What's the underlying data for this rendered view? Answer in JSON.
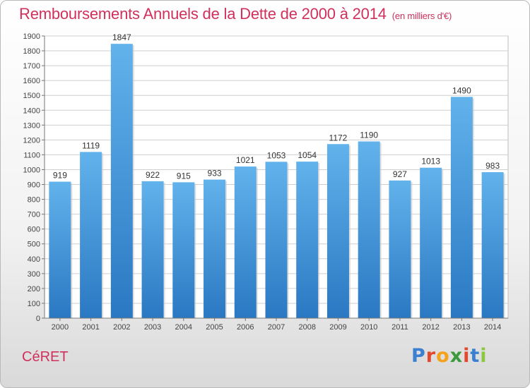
{
  "header": {
    "title": "Remboursements Annuels de la Dette de 2000 à 2014",
    "unit": "(en milliers d'€)"
  },
  "footer": {
    "city": "CéRET",
    "logo_letters": [
      "P",
      "r",
      "o",
      "x",
      "i",
      "t",
      "i"
    ],
    "logo_colors": [
      "#3a7fd0",
      "#e1482e",
      "#f4a21c",
      "#3a9a3a",
      "#e1482e",
      "#3a7fd0",
      "#8dc63f"
    ]
  },
  "colors": {
    "title": "#d0305c",
    "bar_top": "#62b2ec",
    "bar_bottom": "#2a78c2",
    "grid": "#cfcfcf"
  },
  "chart_data": {
    "type": "bar",
    "title": "Remboursements Annuels de la Dette de 2000 à 2014",
    "xlabel": "",
    "ylabel": "",
    "categories": [
      "2000",
      "2001",
      "2002",
      "2003",
      "2004",
      "2005",
      "2006",
      "2007",
      "2008",
      "2009",
      "2010",
      "2011",
      "2012",
      "2013",
      "2014"
    ],
    "values": [
      919,
      1119,
      1847,
      922,
      915,
      933,
      1021,
      1053,
      1054,
      1172,
      1190,
      927,
      1013,
      1490,
      983
    ],
    "ylim": [
      0,
      1900
    ],
    "ytick_step": 100,
    "grid": true,
    "legend": "none"
  }
}
